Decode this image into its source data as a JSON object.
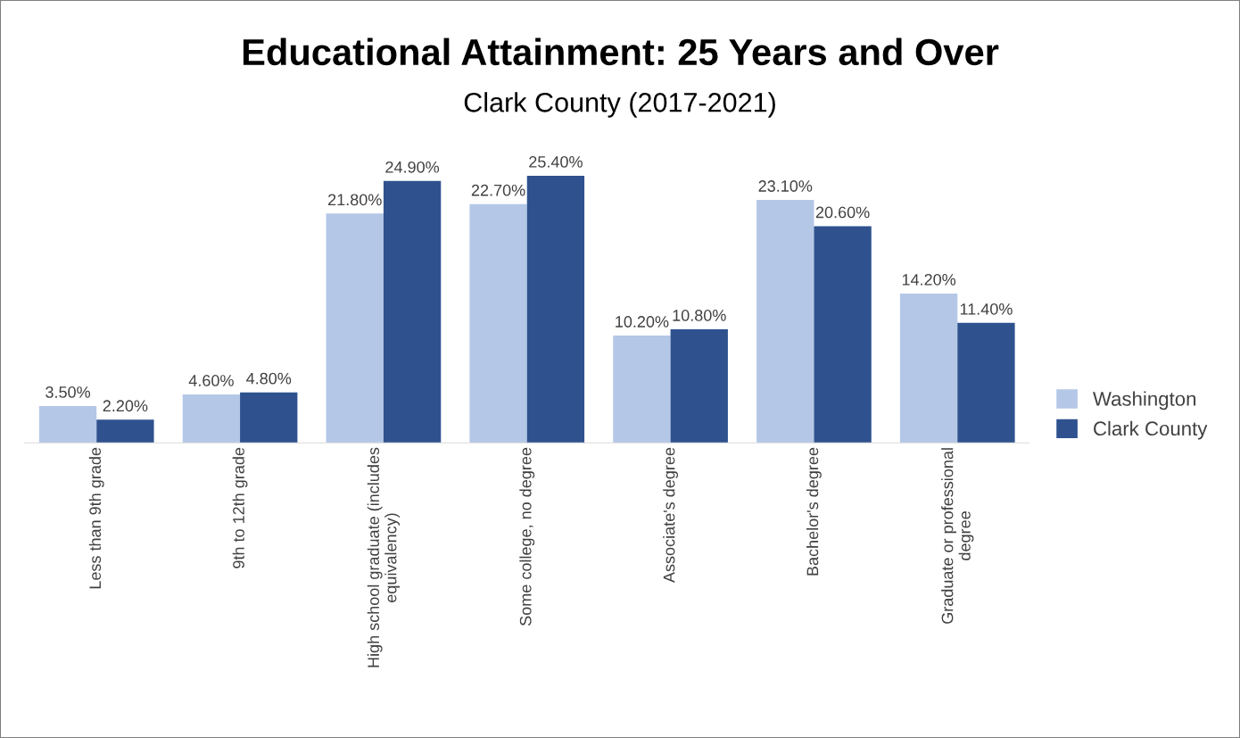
{
  "chart_data": {
    "type": "bar",
    "title": "Educational Attainment: 25 Years and Over",
    "subtitle": "Clark County (2017-2021)",
    "categories": [
      "Less than 9th grade",
      "9th to 12th grade",
      "High school graduate (includes\nequivalency)",
      "Some college, no degree",
      "Associate's degree",
      "Bachelor's degree",
      "Graduate or professional\ndegree"
    ],
    "series": [
      {
        "name": "Washington",
        "color": "#b4c7e7",
        "values": [
          3.5,
          4.6,
          21.8,
          22.7,
          10.2,
          23.1,
          14.2
        ],
        "value_labels": [
          "3.50%",
          "4.60%",
          "21.80%",
          "22.70%",
          "10.20%",
          "23.10%",
          "14.20%"
        ]
      },
      {
        "name": "Clark County",
        "color": "#2f528f",
        "values": [
          2.2,
          4.8,
          24.9,
          25.4,
          10.8,
          20.6,
          11.4
        ],
        "value_labels": [
          "2.20%",
          "4.80%",
          "24.90%",
          "25.40%",
          "10.80%",
          "20.60%",
          "11.40%"
        ]
      }
    ],
    "legend": "right",
    "grid": false
  }
}
